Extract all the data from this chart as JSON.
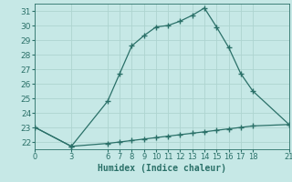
{
  "xlabel": "Humidex (Indice chaleur)",
  "background_color": "#c6e8e6",
  "grid_color": "#aed4d0",
  "line_color": "#2a7068",
  "x_upper": [
    0,
    3,
    6,
    7,
    8,
    9,
    10,
    11,
    12,
    13,
    14,
    15,
    16,
    17,
    18,
    21
  ],
  "y_upper": [
    23.0,
    21.7,
    24.8,
    26.7,
    28.6,
    29.3,
    29.9,
    30.0,
    30.3,
    30.7,
    31.2,
    29.9,
    28.5,
    26.7,
    25.5,
    23.2
  ],
  "x_lower": [
    0,
    3,
    6,
    7,
    8,
    9,
    10,
    11,
    12,
    13,
    14,
    15,
    16,
    17,
    18,
    21
  ],
  "y_lower": [
    23.0,
    21.7,
    21.9,
    22.0,
    22.1,
    22.2,
    22.3,
    22.4,
    22.5,
    22.6,
    22.7,
    22.8,
    22.9,
    23.0,
    23.1,
    23.2
  ],
  "xlim": [
    0,
    21
  ],
  "ylim": [
    21.5,
    31.5
  ],
  "xticks": [
    0,
    3,
    6,
    7,
    8,
    9,
    10,
    11,
    12,
    13,
    14,
    15,
    16,
    17,
    18,
    21
  ],
  "yticks": [
    22,
    23,
    24,
    25,
    26,
    27,
    28,
    29,
    30,
    31
  ],
  "marker": "+",
  "marker_size": 4,
  "line_width": 0.9,
  "font_size": 6.5
}
